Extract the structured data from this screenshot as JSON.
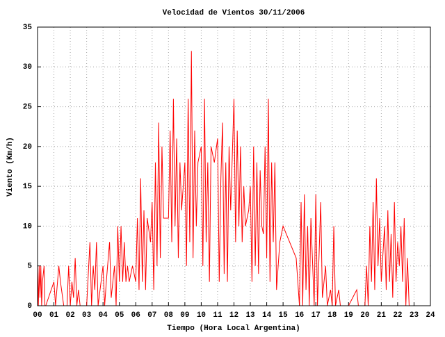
{
  "chart_data": {
    "type": "line",
    "title": "Velocidad de Vientos 30/11/2006",
    "xlabel": "Tiempo (Hora Local Argentina)",
    "ylabel": "Viento (Km/h)",
    "color": "#ff0000",
    "grid": true,
    "xlim": [
      0,
      24
    ],
    "ylim": [
      0,
      35
    ],
    "yticks": [
      0,
      5,
      10,
      15,
      20,
      25,
      30,
      35
    ],
    "xticks": [
      {
        "value": 0,
        "label": "00"
      },
      {
        "value": 1,
        "label": "01"
      },
      {
        "value": 2,
        "label": "02"
      },
      {
        "value": 3,
        "label": "03"
      },
      {
        "value": 4,
        "label": "04"
      },
      {
        "value": 5,
        "label": "05"
      },
      {
        "value": 6,
        "label": "06"
      },
      {
        "value": 7,
        "label": "07"
      },
      {
        "value": 8,
        "label": "08"
      },
      {
        "value": 9,
        "label": "09"
      },
      {
        "value": 10,
        "label": "10"
      },
      {
        "value": 11,
        "label": "11"
      },
      {
        "value": 12,
        "label": "12"
      },
      {
        "value": 13,
        "label": "13"
      },
      {
        "value": 14,
        "label": "14"
      },
      {
        "value": 15,
        "label": "15"
      },
      {
        "value": 16,
        "label": "16"
      },
      {
        "value": 17,
        "label": "17"
      },
      {
        "value": 18,
        "label": "18"
      },
      {
        "value": 19,
        "label": "19"
      },
      {
        "value": 20,
        "label": "20"
      },
      {
        "value": 21,
        "label": "21"
      },
      {
        "value": 22,
        "label": "22"
      },
      {
        "value": 23,
        "label": "23"
      },
      {
        "value": 24,
        "label": "24"
      }
    ],
    "x": [
      0.0,
      0.05,
      0.1,
      0.15,
      0.2,
      0.25,
      0.3,
      0.4,
      0.45,
      0.5,
      1.0,
      1.1,
      1.3,
      1.4,
      1.6,
      1.8,
      1.9,
      2.0,
      2.1,
      2.2,
      2.3,
      2.4,
      2.5,
      2.6,
      3.0,
      3.2,
      3.3,
      3.4,
      3.5,
      3.6,
      3.7,
      4.0,
      4.1,
      4.2,
      4.4,
      4.5,
      4.7,
      4.8,
      4.9,
      5.0,
      5.1,
      5.2,
      5.3,
      5.4,
      5.5,
      5.6,
      5.8,
      6.0,
      6.1,
      6.2,
      6.3,
      6.4,
      6.5,
      6.6,
      6.7,
      6.9,
      7.0,
      7.1,
      7.2,
      7.3,
      7.4,
      7.5,
      7.6,
      7.7,
      8.0,
      8.1,
      8.2,
      8.3,
      8.4,
      8.5,
      8.6,
      8.7,
      8.8,
      9.0,
      9.1,
      9.2,
      9.3,
      9.4,
      9.5,
      9.6,
      9.7,
      9.8,
      10.0,
      10.1,
      10.2,
      10.3,
      10.4,
      10.5,
      10.6,
      10.8,
      11.0,
      11.1,
      11.2,
      11.3,
      11.4,
      11.5,
      11.6,
      11.7,
      11.8,
      12.0,
      12.1,
      12.2,
      12.3,
      12.4,
      12.5,
      12.6,
      12.7,
      12.9,
      13.0,
      13.1,
      13.2,
      13.3,
      13.4,
      13.5,
      13.6,
      13.7,
      13.8,
      13.9,
      14.0,
      14.1,
      14.2,
      14.3,
      14.4,
      14.5,
      14.6,
      14.8,
      15.0,
      15.2,
      15.8,
      16.0,
      16.1,
      16.2,
      16.3,
      16.4,
      16.5,
      16.6,
      16.7,
      16.9,
      17.0,
      17.1,
      17.3,
      17.4,
      17.6,
      17.7,
      17.9,
      18.0,
      18.1,
      18.2,
      18.4,
      18.5,
      19.0,
      19.5,
      19.6,
      20.0,
      20.1,
      20.2,
      20.3,
      20.4,
      20.5,
      20.6,
      20.7,
      20.8,
      20.9,
      21.0,
      21.2,
      21.3,
      21.4,
      21.5,
      21.6,
      21.7,
      21.8,
      21.9,
      22.0,
      22.1,
      22.2,
      22.3,
      22.4,
      22.5,
      22.6,
      22.7
    ],
    "values": [
      5,
      0,
      5,
      1,
      5,
      0,
      3,
      5,
      0,
      0,
      3,
      0,
      5,
      3,
      0,
      0,
      5,
      0,
      3,
      1,
      6,
      0,
      2,
      0,
      0,
      8,
      0,
      5,
      2,
      8,
      0,
      5,
      0,
      3,
      8,
      1,
      5,
      0,
      10,
      3,
      10,
      3,
      8,
      3,
      5,
      3,
      5,
      3,
      11,
      2,
      16,
      3,
      12,
      2,
      11,
      8,
      13,
      2,
      18,
      5,
      23,
      6,
      20,
      11,
      11,
      22,
      8,
      26,
      10,
      21,
      6,
      18,
      12,
      18,
      5,
      26,
      8,
      32,
      6,
      22,
      10,
      18,
      20,
      5,
      26,
      8,
      18,
      3,
      20,
      18,
      21,
      3,
      16,
      23,
      4,
      18,
      3,
      20,
      12,
      26,
      8,
      22,
      10,
      20,
      8,
      15,
      10,
      12,
      15,
      3,
      20,
      5,
      18,
      4,
      17,
      10,
      9,
      20,
      6,
      26,
      3,
      18,
      8,
      18,
      2,
      8,
      10,
      9,
      6,
      0,
      13,
      0,
      14,
      2,
      10,
      0,
      11,
      0,
      14,
      0,
      13,
      1,
      5,
      0,
      2,
      0,
      10,
      0,
      2,
      0,
      0,
      2,
      0,
      0,
      5,
      0,
      10,
      3,
      13,
      2,
      16,
      5,
      11,
      3,
      10,
      2,
      12,
      3,
      9,
      1,
      13,
      3,
      8,
      5,
      10,
      3,
      11,
      0,
      6,
      0
    ]
  }
}
